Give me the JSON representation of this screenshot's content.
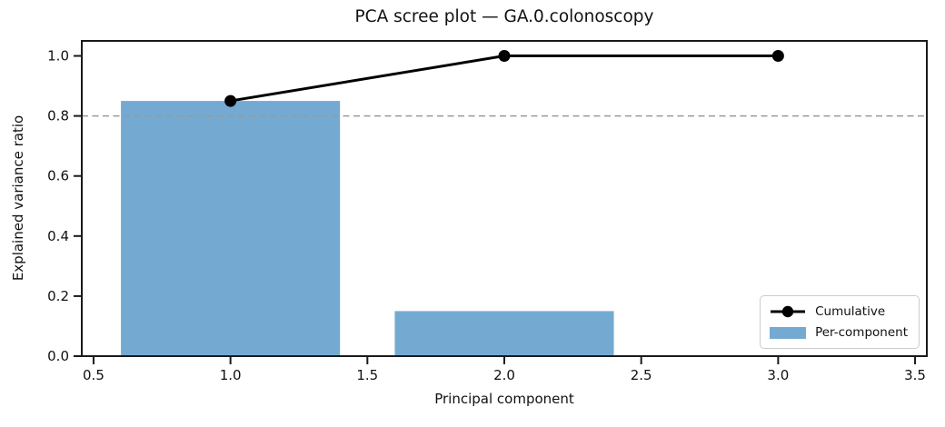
{
  "figure": {
    "title": "PCA scree plot — GA.0.colonoscopy",
    "xlabel": "Principal component",
    "ylabel": "Explained variance ratio"
  },
  "legend": {
    "position": "lower right",
    "items": [
      {
        "label": "Cumulative",
        "swatch": "line-with-circle-marker",
        "color": "#000000"
      },
      {
        "label": "Per-component",
        "swatch": "filled-patch",
        "color": "#74aad2"
      }
    ]
  },
  "chart_data": {
    "type": "bar",
    "title": "PCA scree plot — GA.0.colonoscopy",
    "xlabel": "Principal component",
    "ylabel": "Explained variance ratio",
    "categories": [
      1,
      2,
      3
    ],
    "series": [
      {
        "name": "Per-component",
        "type": "bar",
        "values": [
          0.85,
          0.15,
          0.0
        ],
        "color": "#74aad2",
        "bar_width": 0.8
      },
      {
        "name": "Cumulative",
        "type": "line",
        "values": [
          0.85,
          1.0,
          1.0
        ],
        "color": "#000000",
        "marker": "circle",
        "marker_size": 6.5,
        "line_width": 3
      }
    ],
    "threshold_line": {
      "y": 0.8,
      "style": "dashed",
      "color": "#999999"
    },
    "xlim": [
      0.457,
      3.543
    ],
    "ylim": [
      0.0,
      1.05
    ],
    "xticks": [
      0.5,
      1.0,
      1.5,
      2.0,
      2.5,
      3.0,
      3.5
    ],
    "yticks": [
      0.0,
      0.2,
      0.4,
      0.6,
      0.8,
      1.0
    ],
    "grid": false,
    "legend_position": "lower right",
    "axis_color": "#1a1a1a"
  }
}
